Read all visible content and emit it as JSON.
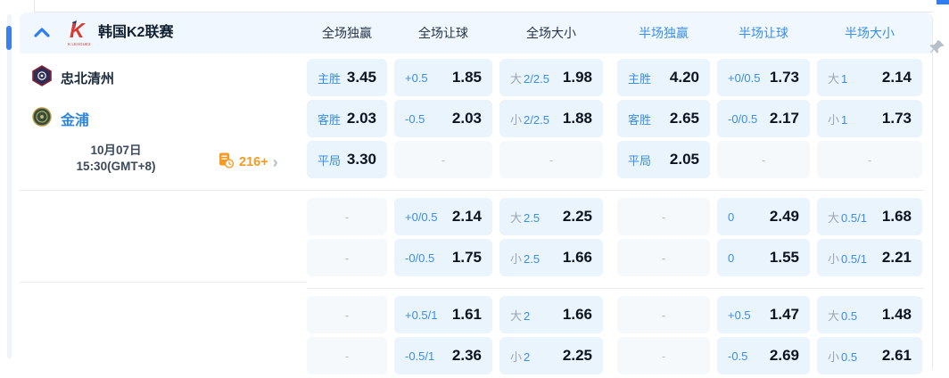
{
  "header": {
    "league": "韩国K2联赛",
    "columns": [
      {
        "label": "全场独赢",
        "accent": false
      },
      {
        "label": "全场让球",
        "accent": false
      },
      {
        "label": "全场大小",
        "accent": false
      },
      {
        "label": "半场独赢",
        "accent": true
      },
      {
        "label": "半场让球",
        "accent": true
      },
      {
        "label": "半场大小",
        "accent": true
      }
    ]
  },
  "match": {
    "home_team": "忠北清州",
    "away_team": "金浦",
    "date_line1": "10月07日",
    "date_line2": "15:30(GMT+8)",
    "more_count": "216+",
    "more_chevron": "›"
  },
  "odds_blocks": [
    [
      [
        {
          "label": "主胜",
          "value": "3.45"
        },
        {
          "label": "+0.5",
          "value": "1.85"
        },
        {
          "prefix": "大",
          "label": "2/2.5",
          "value": "1.98"
        },
        {
          "label": "主胜",
          "value": "4.20"
        },
        {
          "label": "+0/0.5",
          "value": "1.73"
        },
        {
          "prefix": "大",
          "label": "1",
          "value": "2.14"
        }
      ],
      [
        {
          "label": "客胜",
          "value": "2.03"
        },
        {
          "label": "-0.5",
          "value": "2.03"
        },
        {
          "prefix": "小",
          "label": "2/2.5",
          "value": "1.88"
        },
        {
          "label": "客胜",
          "value": "2.65"
        },
        {
          "label": "-0/0.5",
          "value": "2.17"
        },
        {
          "prefix": "小",
          "label": "1",
          "value": "1.73"
        }
      ],
      [
        {
          "label": "平局",
          "value": "3.30"
        },
        {
          "dash": "-"
        },
        {
          "dash": "-"
        },
        {
          "label": "平局",
          "value": "2.05"
        },
        {
          "dash": "-"
        },
        {
          "dash": "-"
        }
      ]
    ],
    [
      [
        {
          "dash": "-"
        },
        {
          "label": "+0/0.5",
          "value": "2.14"
        },
        {
          "prefix": "大",
          "label": "2.5",
          "value": "2.25"
        },
        {
          "dash": "-"
        },
        {
          "label": "0",
          "value": "2.49"
        },
        {
          "prefix": "大",
          "label": "0.5/1",
          "value": "1.68"
        }
      ],
      [
        {
          "dash": "-"
        },
        {
          "label": "-0/0.5",
          "value": "1.75"
        },
        {
          "prefix": "小",
          "label": "2.5",
          "value": "1.66"
        },
        {
          "dash": "-"
        },
        {
          "label": "0",
          "value": "1.55"
        },
        {
          "prefix": "小",
          "label": "0.5/1",
          "value": "2.21"
        }
      ]
    ],
    [
      [
        {
          "dash": "-"
        },
        {
          "label": "+0.5/1",
          "value": "1.61"
        },
        {
          "prefix": "大",
          "label": "2",
          "value": "1.66"
        },
        {
          "dash": "-"
        },
        {
          "label": "+0.5",
          "value": "1.47"
        },
        {
          "prefix": "大",
          "label": "0.5",
          "value": "1.48"
        }
      ],
      [
        {
          "dash": "-"
        },
        {
          "label": "-0.5/1",
          "value": "2.36"
        },
        {
          "prefix": "小",
          "label": "2",
          "value": "2.25"
        },
        {
          "dash": "-"
        },
        {
          "label": "-0.5",
          "value": "2.69"
        },
        {
          "prefix": "小",
          "label": "0.5",
          "value": "2.61"
        }
      ]
    ]
  ],
  "colors": {
    "accent_blue": "#3a8ee6",
    "value_dark": "#0d1420",
    "cell_bg": "#eaf4fc",
    "dash_cell_bg": "#f5f9fc",
    "band_bg": "#f0f7fe",
    "orange": "#f59a23",
    "scrollbar_blue": "#3d7ef0",
    "gray_label": "#9aa6b4",
    "logo_red": "#d93a32"
  }
}
